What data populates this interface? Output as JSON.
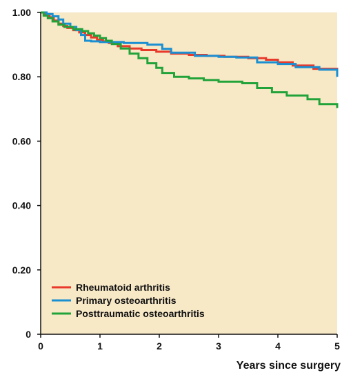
{
  "chart_data": {
    "type": "line",
    "step": true,
    "title": "",
    "xlabel": "Years since surgery",
    "ylabel": "",
    "xlim": [
      0,
      5
    ],
    "ylim": [
      0,
      1
    ],
    "xticks": [
      "0",
      "1",
      "2",
      "3",
      "4",
      "5"
    ],
    "yticks": [
      "0",
      "0.20",
      "0.40",
      "0.60",
      "0.80",
      "1.00"
    ],
    "grid": false,
    "legend_position": "bottom-left",
    "colors": {
      "plot_background": "#f7e8c6",
      "axis": "#111111"
    },
    "series": [
      {
        "name": "Rheumatoid arthritis",
        "color": "#e8392b",
        "x": [
          0,
          0.08,
          0.15,
          0.22,
          0.3,
          0.38,
          0.45,
          0.55,
          0.65,
          0.75,
          0.85,
          0.95,
          1.05,
          1.15,
          1.3,
          1.5,
          1.7,
          1.95,
          2.2,
          2.5,
          2.8,
          3.1,
          3.5,
          3.8,
          4.0,
          4.25,
          4.6,
          5.0
        ],
        "y": [
          1.0,
          0.995,
          0.985,
          0.975,
          0.965,
          0.958,
          0.952,
          0.945,
          0.938,
          0.93,
          0.922,
          0.915,
          0.91,
          0.905,
          0.895,
          0.888,
          0.883,
          0.878,
          0.872,
          0.868,
          0.865,
          0.862,
          0.858,
          0.853,
          0.845,
          0.835,
          0.825,
          0.815
        ]
      },
      {
        "name": "Primary osteoarthritis",
        "color": "#1a8fd1",
        "x": [
          0,
          0.1,
          0.2,
          0.3,
          0.38,
          0.5,
          0.6,
          0.68,
          0.75,
          0.85,
          1.0,
          1.4,
          1.8,
          2.05,
          2.2,
          2.6,
          3.0,
          3.3,
          3.65,
          4.0,
          4.3,
          4.7,
          5.0
        ],
        "y": [
          1.0,
          0.995,
          0.988,
          0.978,
          0.965,
          0.955,
          0.945,
          0.93,
          0.912,
          0.91,
          0.908,
          0.905,
          0.9,
          0.887,
          0.875,
          0.865,
          0.862,
          0.86,
          0.845,
          0.84,
          0.83,
          0.822,
          0.8
        ]
      },
      {
        "name": "Posttraumatic osteoarthritis",
        "color": "#22a33a",
        "x": [
          0,
          0.05,
          0.12,
          0.2,
          0.3,
          0.4,
          0.55,
          0.7,
          0.8,
          0.9,
          1.0,
          1.1,
          1.2,
          1.35,
          1.5,
          1.65,
          1.8,
          1.95,
          2.05,
          2.25,
          2.5,
          2.75,
          3.0,
          3.4,
          3.65,
          3.9,
          4.15,
          4.5,
          4.7,
          5.0
        ],
        "y": [
          1.0,
          0.99,
          0.982,
          0.972,
          0.962,
          0.955,
          0.948,
          0.942,
          0.935,
          0.928,
          0.92,
          0.912,
          0.902,
          0.888,
          0.872,
          0.858,
          0.842,
          0.828,
          0.812,
          0.8,
          0.795,
          0.79,
          0.785,
          0.78,
          0.765,
          0.752,
          0.742,
          0.73,
          0.715,
          0.703
        ]
      }
    ]
  }
}
